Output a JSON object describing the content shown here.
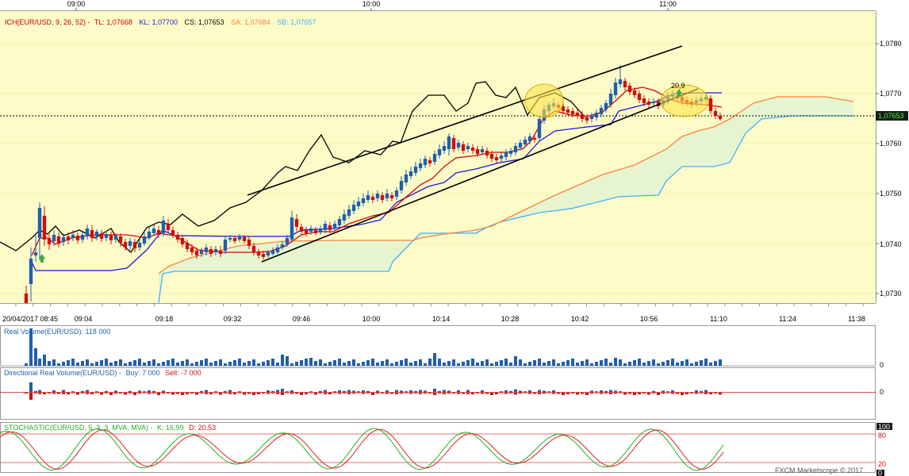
{
  "colors": {
    "tenkan": "#e00000",
    "kijun": "#1a1adb",
    "chikou": "#000000",
    "span_a": "#ff8040",
    "span_b": "#40b0ff",
    "cloud": "#e6f5d0",
    "bg": "#fdfcc8",
    "up": "#1f5fb0",
    "down": "#d01010",
    "stoch_k": "#20b020",
    "stoch_d": "#e02020"
  },
  "header": {
    "ich_name": "ICH(EUR/USD, 9, 26, 52) -",
    "tl": "TL: 1,07668",
    "kl": "KL: 1,07700",
    "cs": "CS: 1,07653",
    "sa": "SA: 1,07684",
    "sb": "SB: 1,07657"
  },
  "top_axis": [
    "09:00",
    "10:00",
    "11:00"
  ],
  "bottom_axis": [
    "20/04/2017 08:45",
    "09:04",
    "09:18",
    "09:32",
    "09:46",
    "10:00",
    "10:14",
    "10:28",
    "10:42",
    "10:56",
    "11:10",
    "11:24",
    "11:38"
  ],
  "price_axis": [
    "1,0780",
    "1,0770",
    "1,0760",
    "1,0750",
    "1,0740",
    "1,0730"
  ],
  "current_price": "1,07653",
  "annotation": "20,9",
  "panels": {
    "volume": {
      "label": "Real Volume(EUR/USD): 118 000",
      "zero": "0"
    },
    "directional": {
      "label_a": "Directional Real Volume(EUR/USD) -",
      "buy": "Buy: 7 000",
      "sell": "Sell: -7 000",
      "zero": "0"
    },
    "stochastic": {
      "label_a": "STOCHASTIC(EUR/USD, 5, 3, 3, MVA, MVA) -",
      "k": "K: 16,99",
      "d": "D: 20,53",
      "levels": [
        "100",
        "80",
        "20",
        "0"
      ]
    }
  },
  "footer": "FXCM Marketscope © 2017",
  "chart_data": {
    "type": "candlestick",
    "symbol": "EUR/USD",
    "timeframe": "1 minute",
    "ylim": [
      1.0727,
      1.0783
    ],
    "indicators": {
      "tenkan": 1.07668,
      "kijun": 1.077,
      "chikou": 1.07653,
      "senkou_a": 1.07684,
      "senkou_b": 1.07657
    },
    "volume_last": 118000,
    "directional_buy": 7000,
    "directional_sell": -7000,
    "stochastic": {
      "k": 16.99,
      "d": 20.53
    }
  }
}
